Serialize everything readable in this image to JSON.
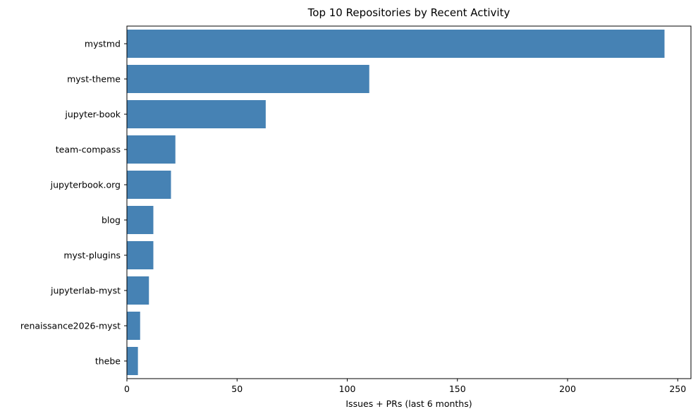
{
  "chart_data": {
    "type": "bar",
    "orientation": "horizontal",
    "title": "Top 10 Repositories by Recent Activity",
    "xlabel": "Issues + PRs (last 6 months)",
    "ylabel": "",
    "categories": [
      "mystmd",
      "myst-theme",
      "jupyter-book",
      "team-compass",
      "jupyterbook.org",
      "blog",
      "myst-plugins",
      "jupyterlab-myst",
      "renaissance2026-myst",
      "thebe"
    ],
    "values": [
      244,
      110,
      63,
      22,
      20,
      12,
      12,
      10,
      6,
      5
    ],
    "xlim": [
      0,
      256
    ],
    "xticks": [
      0,
      50,
      100,
      150,
      200,
      250
    ],
    "bar_color": "#4682b4",
    "grid": false,
    "legend": "none"
  }
}
